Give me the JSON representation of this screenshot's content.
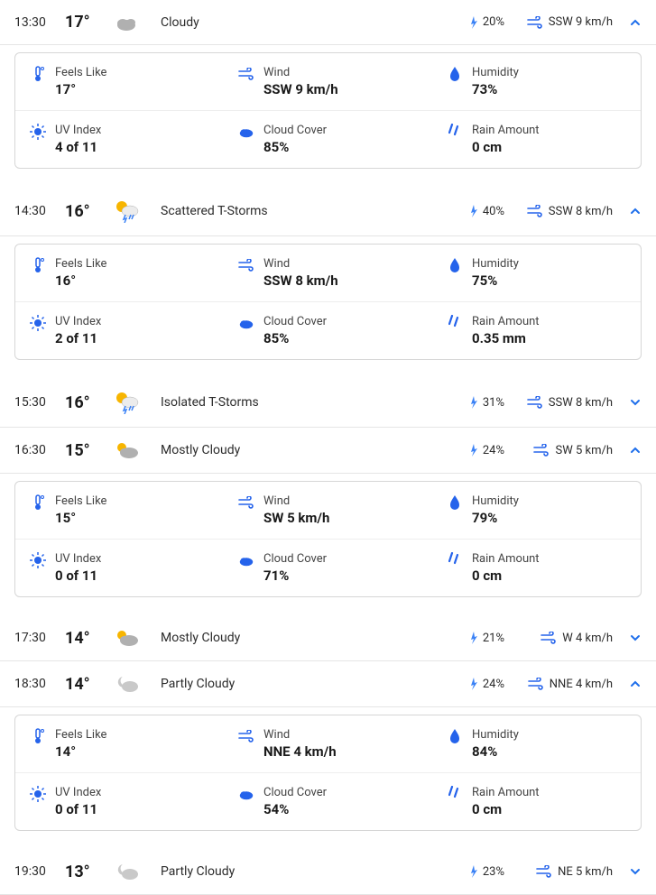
{
  "colors": {
    "accent_blue": "#1f6feb",
    "icon_blue": "#2563eb",
    "text_dark": "#1a1a1a",
    "text_mid": "#2b2b2b",
    "border": "#d6d6d6",
    "sun": "#f7b500",
    "cloud": "#b0b0b0",
    "cloud_night": "#c9c9c9",
    "rain_drop": "#3b82f6"
  },
  "detail_labels": {
    "feels_like": "Feels Like",
    "wind": "Wind",
    "humidity": "Humidity",
    "uv": "UV Index",
    "cloud": "Cloud Cover",
    "rain_amount": "Rain Amount"
  },
  "rows": [
    {
      "time": "13:30",
      "temp": "17°",
      "icon": "cloudy",
      "condition": "Cloudy",
      "precip": "20%",
      "wind": "SSW 9 km/h",
      "expanded": true,
      "details": {
        "feels_like": "17°",
        "wind": "SSW 9 km/h",
        "humidity": "73%",
        "uv": "4 of 11",
        "cloud": "85%",
        "rain_amount": "0 cm"
      }
    },
    {
      "time": "14:30",
      "temp": "16°",
      "icon": "tstorm-sun",
      "condition": "Scattered T-Storms",
      "precip": "40%",
      "wind": "SSW 8 km/h",
      "expanded": true,
      "details": {
        "feels_like": "16°",
        "wind": "SSW 8 km/h",
        "humidity": "75%",
        "uv": "2 of 11",
        "cloud": "85%",
        "rain_amount": "0.35 mm"
      }
    },
    {
      "time": "15:30",
      "temp": "16°",
      "icon": "tstorm-sun",
      "condition": "Isolated T-Storms",
      "precip": "31%",
      "wind": "SSW 8 km/h",
      "expanded": false
    },
    {
      "time": "16:30",
      "temp": "15°",
      "icon": "mostly-cloudy",
      "condition": "Mostly Cloudy",
      "precip": "24%",
      "wind": "SW 5 km/h",
      "expanded": true,
      "details": {
        "feels_like": "15°",
        "wind": "SW 5 km/h",
        "humidity": "79%",
        "uv": "0 of 11",
        "cloud": "71%",
        "rain_amount": "0 cm"
      }
    },
    {
      "time": "17:30",
      "temp": "14°",
      "icon": "mostly-cloudy",
      "condition": "Mostly Cloudy",
      "precip": "21%",
      "wind": "W 4 km/h",
      "expanded": false
    },
    {
      "time": "18:30",
      "temp": "14°",
      "icon": "partly-cloudy-night",
      "condition": "Partly Cloudy",
      "precip": "24%",
      "wind": "NNE 4 km/h",
      "expanded": true,
      "details": {
        "feels_like": "14°",
        "wind": "NNE 4 km/h",
        "humidity": "84%",
        "uv": "0 of 11",
        "cloud": "54%",
        "rain_amount": "0 cm"
      }
    },
    {
      "time": "19:30",
      "temp": "13°",
      "icon": "partly-cloudy-night",
      "condition": "Partly Cloudy",
      "precip": "23%",
      "wind": "NE 5 km/h",
      "expanded": false
    }
  ]
}
